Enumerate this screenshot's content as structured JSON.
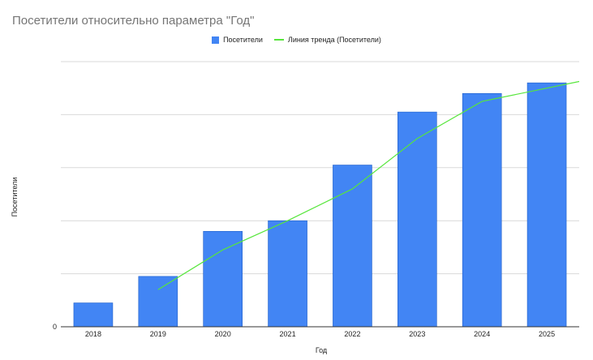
{
  "chart_data": {
    "type": "bar",
    "title": "Посетители относительно параметра \"Год\"",
    "xlabel": "Год",
    "ylabel": "Посетители",
    "categories": [
      "2018",
      "2019",
      "2020",
      "2021",
      "2022",
      "2023",
      "2024",
      "2025"
    ],
    "series": [
      {
        "name": "Посетители",
        "values": [
          0.9,
          1.9,
          3.6,
          4.0,
          6.1,
          8.1,
          8.8,
          9.2
        ],
        "color": "#4285f4"
      }
    ],
    "trendline": {
      "name": "Линия тренда (Посетители)",
      "color": "#57e63c",
      "x": [
        "2019",
        "2020",
        "2021",
        "2022",
        "2023",
        "2024",
        "2025"
      ],
      "values": [
        1.4,
        2.9,
        4.0,
        5.2,
        7.1,
        8.5,
        9.0
      ]
    },
    "y_tick_labels": [
      "0"
    ],
    "ylim": [
      0,
      10
    ],
    "grid": true,
    "legend_position": "top"
  }
}
